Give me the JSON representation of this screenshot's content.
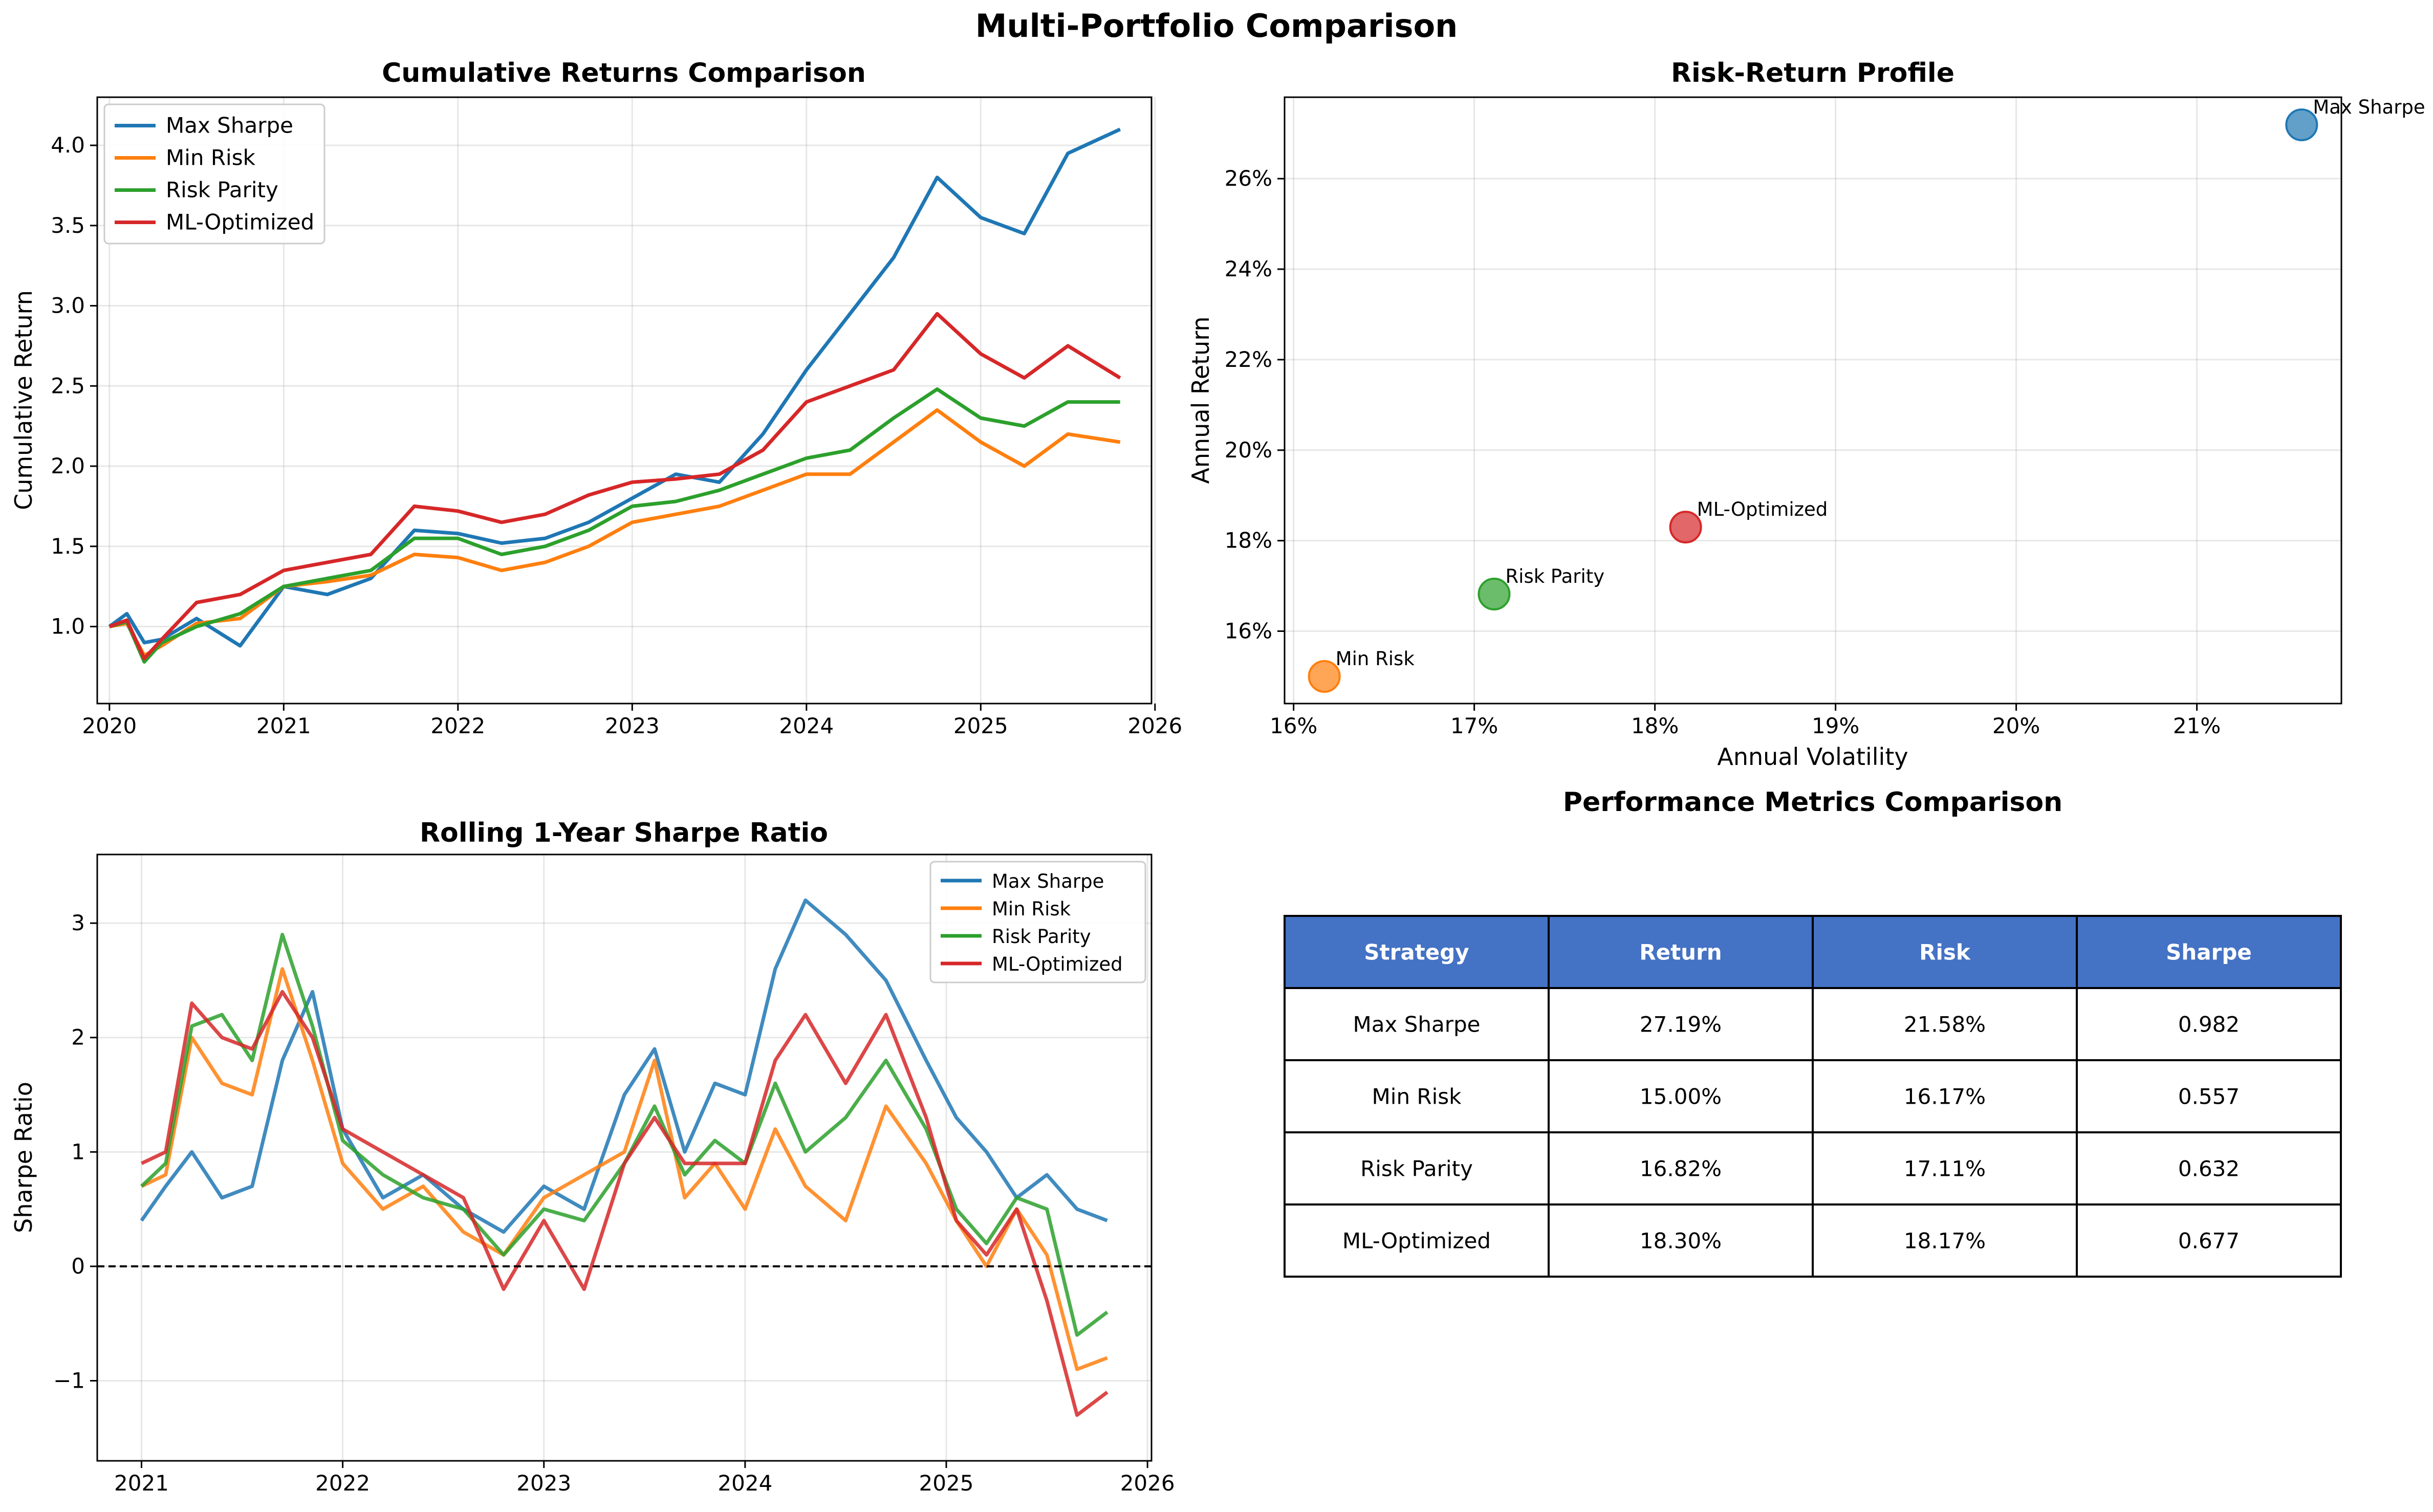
{
  "figure": {
    "title": "Multi-Portfolio Comparison"
  },
  "colors": {
    "max_sharpe": "#1f77b4",
    "min_risk": "#ff7f0e",
    "risk_parity": "#2ca02c",
    "ml_optimized": "#d62728",
    "table_header": "#4472c4"
  },
  "chart_data": [
    {
      "type": "line",
      "title": "Cumulative Returns Comparison",
      "xlabel": "",
      "ylabel": "Cumulative Return",
      "x_ticks": [
        "2020",
        "2021",
        "2022",
        "2023",
        "2024",
        "2025",
        "2026"
      ],
      "y_ticks": [
        "1.0",
        "1.5",
        "2.0",
        "2.5",
        "3.0",
        "3.5",
        "4.0"
      ],
      "xlim": [
        2019.93,
        2025.98
      ],
      "ylim": [
        0.52,
        4.3
      ],
      "grid": true,
      "legend": "top-left",
      "x": [
        2020.0,
        2020.1,
        2020.2,
        2020.3,
        2020.5,
        2020.75,
        2021.0,
        2021.25,
        2021.5,
        2021.75,
        2022.0,
        2022.25,
        2022.5,
        2022.75,
        2023.0,
        2023.25,
        2023.5,
        2023.75,
        2024.0,
        2024.25,
        2024.5,
        2024.75,
        2025.0,
        2025.25,
        2025.5,
        2025.8
      ],
      "series": [
        {
          "name": "Max Sharpe",
          "color": "#1f77b4",
          "values": [
            1.0,
            1.08,
            0.9,
            0.92,
            1.05,
            0.88,
            1.25,
            1.2,
            1.3,
            1.6,
            1.58,
            1.52,
            1.55,
            1.65,
            1.8,
            1.95,
            1.9,
            2.2,
            2.6,
            2.95,
            3.3,
            3.8,
            3.55,
            3.45,
            3.95,
            4.1
          ]
        },
        {
          "name": "Min Risk",
          "color": "#ff7f0e",
          "values": [
            1.0,
            1.02,
            0.82,
            0.88,
            1.02,
            1.05,
            1.25,
            1.28,
            1.32,
            1.45,
            1.43,
            1.35,
            1.4,
            1.5,
            1.65,
            1.7,
            1.75,
            1.85,
            1.95,
            1.95,
            2.15,
            2.35,
            2.15,
            2.0,
            2.2,
            2.15
          ]
        },
        {
          "name": "Risk Parity",
          "color": "#2ca02c",
          "values": [
            1.0,
            1.03,
            0.78,
            0.9,
            1.0,
            1.08,
            1.25,
            1.3,
            1.35,
            1.55,
            1.55,
            1.45,
            1.5,
            1.6,
            1.75,
            1.78,
            1.85,
            1.95,
            2.05,
            2.1,
            2.3,
            2.48,
            2.3,
            2.25,
            2.4,
            2.4
          ]
        },
        {
          "name": "ML-Optimized",
          "color": "#d62728",
          "values": [
            1.0,
            1.04,
            0.8,
            0.92,
            1.15,
            1.2,
            1.35,
            1.4,
            1.45,
            1.75,
            1.72,
            1.65,
            1.7,
            1.82,
            1.9,
            1.92,
            1.95,
            2.1,
            2.4,
            2.5,
            2.6,
            2.95,
            2.7,
            2.55,
            2.75,
            2.55
          ]
        }
      ]
    },
    {
      "type": "scatter",
      "title": "Risk-Return Profile",
      "xlabel": "Annual Volatility",
      "ylabel": "Annual Return",
      "x_ticks": [
        "16%",
        "17%",
        "18%",
        "19%",
        "20%",
        "21%"
      ],
      "y_ticks": [
        "16%",
        "18%",
        "20%",
        "22%",
        "24%",
        "26%"
      ],
      "xlim": [
        15.95,
        21.8
      ],
      "ylim": [
        14.4,
        27.8
      ],
      "grid": true,
      "points": [
        {
          "label": "Max Sharpe",
          "x": 21.58,
          "y": 27.19,
          "color": "#1f77b4"
        },
        {
          "label": "Min Risk",
          "x": 16.17,
          "y": 15.0,
          "color": "#ff7f0e"
        },
        {
          "label": "Risk Parity",
          "x": 17.11,
          "y": 16.82,
          "color": "#2ca02c"
        },
        {
          "label": "ML-Optimized",
          "x": 18.17,
          "y": 18.3,
          "color": "#d62728"
        }
      ]
    },
    {
      "type": "line",
      "title": "Rolling 1-Year Sharpe Ratio",
      "xlabel": "",
      "ylabel": "Sharpe Ratio",
      "x_ticks": [
        "2021",
        "2022",
        "2023",
        "2024",
        "2025",
        "2026"
      ],
      "y_ticks": [
        "−1",
        "0",
        "1",
        "2",
        "3"
      ],
      "xlim": [
        2020.78,
        2026.02
      ],
      "ylim": [
        -1.7,
        3.6
      ],
      "grid": true,
      "legend": "top-right",
      "reference_line": 0,
      "x": [
        2021.0,
        2021.12,
        2021.25,
        2021.4,
        2021.55,
        2021.7,
        2021.85,
        2022.0,
        2022.2,
        2022.4,
        2022.6,
        2022.8,
        2023.0,
        2023.2,
        2023.4,
        2023.55,
        2023.7,
        2023.85,
        2024.0,
        2024.15,
        2024.3,
        2024.5,
        2024.7,
        2024.9,
        2025.05,
        2025.2,
        2025.35,
        2025.5,
        2025.65,
        2025.8
      ],
      "series": [
        {
          "name": "Max Sharpe",
          "color": "#1f77b4",
          "values": [
            0.4,
            0.7,
            1.0,
            0.6,
            0.7,
            1.8,
            2.4,
            1.2,
            0.6,
            0.8,
            0.5,
            0.3,
            0.7,
            0.5,
            1.5,
            1.9,
            1.0,
            1.6,
            1.5,
            2.6,
            3.2,
            2.9,
            2.5,
            1.8,
            1.3,
            1.0,
            0.6,
            0.8,
            0.5,
            0.4
          ]
        },
        {
          "name": "Min Risk",
          "color": "#ff7f0e",
          "values": [
            0.7,
            0.8,
            2.0,
            1.6,
            1.5,
            2.6,
            1.8,
            0.9,
            0.5,
            0.7,
            0.3,
            0.1,
            0.6,
            0.8,
            1.0,
            1.8,
            0.6,
            0.9,
            0.5,
            1.2,
            0.7,
            0.4,
            1.4,
            0.9,
            0.4,
            0.0,
            0.5,
            0.1,
            -0.9,
            -0.8
          ]
        },
        {
          "name": "Risk Parity",
          "color": "#2ca02c",
          "values": [
            0.7,
            0.9,
            2.1,
            2.2,
            1.8,
            2.9,
            2.1,
            1.1,
            0.8,
            0.6,
            0.5,
            0.1,
            0.5,
            0.4,
            0.9,
            1.4,
            0.8,
            1.1,
            0.9,
            1.6,
            1.0,
            1.3,
            1.8,
            1.2,
            0.5,
            0.2,
            0.6,
            0.5,
            -0.6,
            -0.4
          ]
        },
        {
          "name": "ML-Optimized",
          "color": "#d62728",
          "values": [
            0.9,
            1.0,
            2.3,
            2.0,
            1.9,
            2.4,
            2.0,
            1.2,
            1.0,
            0.8,
            0.6,
            -0.2,
            0.4,
            -0.2,
            0.9,
            1.3,
            0.9,
            0.9,
            0.9,
            1.8,
            2.2,
            1.6,
            2.2,
            1.3,
            0.4,
            0.1,
            0.5,
            -0.3,
            -1.3,
            -1.1
          ]
        }
      ]
    },
    {
      "type": "table",
      "title": "Performance Metrics Comparison",
      "columns": [
        "Strategy",
        "Return",
        "Risk",
        "Sharpe"
      ],
      "rows": [
        [
          "Max Sharpe",
          "27.19%",
          "21.58%",
          "0.982"
        ],
        [
          "Min Risk",
          "15.00%",
          "16.17%",
          "0.557"
        ],
        [
          "Risk Parity",
          "16.82%",
          "17.11%",
          "0.632"
        ],
        [
          "ML-Optimized",
          "18.30%",
          "18.17%",
          "0.677"
        ]
      ]
    }
  ]
}
